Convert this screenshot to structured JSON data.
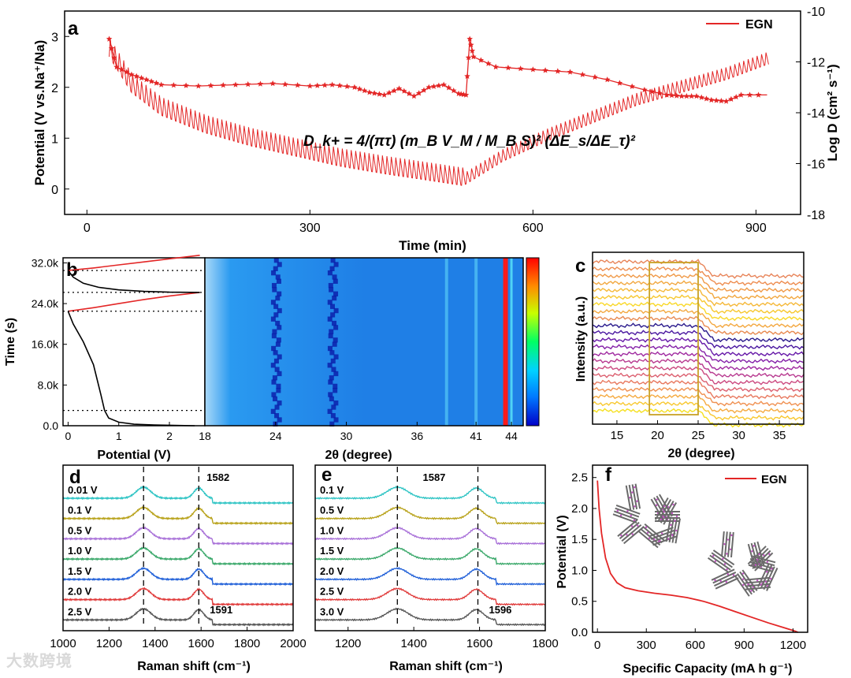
{
  "figure": {
    "watermark": "大数跨境",
    "legend_label": "EGN",
    "panel_labels": [
      "a",
      "b",
      "c",
      "d",
      "e",
      "f"
    ]
  },
  "chart_data": [
    {
      "panel": "a",
      "type": "line",
      "xlabel": "Time (min)",
      "ylabel": "Potential (V vs.Na⁺/Na)",
      "y2label": "Log D (cm² s⁻¹)",
      "xlim": [
        -30,
        960
      ],
      "ylim": [
        -0.5,
        3.5
      ],
      "y2lim": [
        -18,
        -10
      ],
      "xticks": [
        0,
        300,
        600,
        900
      ],
      "yticks": [
        0,
        1,
        2,
        3
      ],
      "y2ticks": [
        -10,
        -12,
        -14,
        -16,
        -18
      ],
      "equation": "D_k+ = 4/(πτ) (m_B V_M / M_B S)² (ΔE_s/ΔE_τ)²",
      "series": [
        {
          "name": "EGN",
          "color": "#e32626",
          "role": "potential",
          "x": [
            30,
            60,
            100,
            160,
            220,
            280,
            340,
            400,
            460,
            505,
            510,
            560,
            620,
            680,
            740,
            800,
            860,
            915
          ],
          "y": [
            2.6,
            1.9,
            1.45,
            1.1,
            0.85,
            0.65,
            0.45,
            0.3,
            0.17,
            0.07,
            0.1,
            0.55,
            0.95,
            1.3,
            1.65,
            1.9,
            2.15,
            2.45
          ]
        },
        {
          "name": "Log D",
          "color": "#e32626",
          "role": "log_d",
          "marker": "star",
          "x": [
            30,
            40,
            60,
            80,
            100,
            150,
            200,
            250,
            300,
            330,
            360,
            380,
            400,
            420,
            440,
            460,
            480,
            500,
            510,
            515,
            520,
            550,
            600,
            650,
            700,
            750,
            780,
            800,
            820,
            840,
            860,
            880,
            915
          ],
          "y": [
            -11.1,
            -12.2,
            -12.5,
            -12.7,
            -12.9,
            -12.95,
            -12.9,
            -12.85,
            -12.95,
            -12.9,
            -13.0,
            -13.2,
            -13.3,
            -13.05,
            -13.35,
            -13.0,
            -12.9,
            -13.25,
            -13.3,
            -11.1,
            -11.8,
            -12.2,
            -12.3,
            -12.4,
            -12.7,
            -13.1,
            -13.3,
            -13.35,
            -13.35,
            -13.5,
            -13.55,
            -13.3,
            -13.3
          ]
        }
      ]
    },
    {
      "panel": "b",
      "type": "line",
      "xlabel": "Potential (V)",
      "ylabel": "Time (s)",
      "xlim": [
        -0.1,
        2.7
      ],
      "ylim": [
        0,
        33000
      ],
      "xticks": [
        0,
        1,
        2
      ],
      "yticks": [
        0,
        8000,
        16000,
        24000,
        32000
      ],
      "ytick_labels": [
        "0.0",
        "8.0k",
        "16.0k",
        "24.0k",
        "32.0k"
      ],
      "series": [
        {
          "name": "discharge",
          "color": "#000000",
          "x": [
            0.0,
            0.1,
            0.3,
            0.5,
            0.65,
            0.72,
            0.8,
            1.0,
            1.3,
            1.7,
            2.1,
            2.5
          ],
          "y": [
            22500,
            20000,
            16500,
            12000,
            6000,
            3000,
            1500,
            700,
            300,
            150,
            60,
            0
          ]
        },
        {
          "name": "charge",
          "color": "#e32626",
          "x": [
            0.0,
            0.5,
            1.0,
            1.5,
            2.0,
            2.6
          ],
          "y": [
            22500,
            23200,
            24000,
            24800,
            25500,
            26200
          ]
        },
        {
          "name": "discharge-2",
          "color": "#000000",
          "x": [
            2.6,
            2.0,
            1.5,
            1.0,
            0.6,
            0.3,
            0.1,
            0.0
          ],
          "y": [
            26200,
            26250,
            26400,
            26700,
            27200,
            28000,
            29200,
            30500
          ]
        },
        {
          "name": "charge-2",
          "color": "#e32626",
          "x": [
            0.0,
            0.5,
            1.0,
            1.5,
            2.0,
            2.6
          ],
          "y": [
            30500,
            31000,
            31600,
            32200,
            32800,
            33500
          ]
        }
      ],
      "dotted_lines_y": [
        3000,
        22500,
        26200,
        30500
      ]
    },
    {
      "panel": "b-map",
      "type": "heatmap",
      "xlabel": "2θ (degree)",
      "xlim": [
        18,
        45
      ],
      "xticks": [
        18,
        24,
        30,
        36,
        41,
        44
      ],
      "peaks_2theta": [
        24.2,
        29.0,
        38.5,
        41.0,
        43.5
      ],
      "colormap": [
        "#0000c8",
        "#0078ff",
        "#00d2ff",
        "#00ff64",
        "#c8ff00",
        "#ff8c00",
        "#ff0000"
      ]
    },
    {
      "panel": "c",
      "type": "line",
      "xlabel": "2θ (degree)",
      "ylabel": "Intensity (a.u.)",
      "xlim": [
        12,
        38
      ],
      "xticks": [
        15,
        20,
        25,
        30,
        35
      ],
      "highlight_range": [
        19,
        25
      ],
      "highlight_color": "#c9a227",
      "num_traces": 22
    },
    {
      "panel": "d",
      "type": "line",
      "xlabel": "Raman shift (cm⁻¹)",
      "xlim": [
        1000,
        2000
      ],
      "xticks": [
        1000,
        1200,
        1400,
        1600,
        1800,
        2000
      ],
      "peak_lines": [
        1350,
        1590
      ],
      "peak_labels": [
        {
          "text": "1582",
          "x": 1590
        },
        {
          "text": "1591",
          "x": 1590
        }
      ],
      "series": [
        {
          "name": "0.01 V",
          "color": "#2ec4c4"
        },
        {
          "name": "0.1 V",
          "color": "#b8a21a"
        },
        {
          "name": "0.5 V",
          "color": "#a870d8"
        },
        {
          "name": "1.0 V",
          "color": "#3aa86a"
        },
        {
          "name": "1.5 V",
          "color": "#1f5fd8"
        },
        {
          "name": "2.0 V",
          "color": "#e03a3a"
        },
        {
          "name": "2.5 V",
          "color": "#555555"
        }
      ]
    },
    {
      "panel": "e",
      "type": "line",
      "xlabel": "Raman shift (cm⁻¹)",
      "xlim": [
        1100,
        1800
      ],
      "xticks": [
        1200,
        1400,
        1600,
        1800
      ],
      "peak_lines": [
        1350,
        1595
      ],
      "peak_labels": [
        {
          "text": "1587",
          "x": 1595
        },
        {
          "text": "1596",
          "x": 1595
        }
      ],
      "series": [
        {
          "name": "0.1 V",
          "color": "#2ec4c4"
        },
        {
          "name": "0.5 V",
          "color": "#b8a21a"
        },
        {
          "name": "1.0 V",
          "color": "#a870d8"
        },
        {
          "name": "1.5 V",
          "color": "#3aa86a"
        },
        {
          "name": "2.0 V",
          "color": "#1f5fd8"
        },
        {
          "name": "2.5 V",
          "color": "#e03a3a"
        },
        {
          "name": "3.0 V",
          "color": "#555555"
        }
      ]
    },
    {
      "panel": "f",
      "type": "line",
      "xlabel": "Specific Capacity (mA h g⁻¹)",
      "ylabel": "Potential (V)",
      "xlim": [
        -30,
        1290
      ],
      "ylim": [
        0,
        2.7
      ],
      "xticks": [
        0,
        300,
        600,
        900,
        1200
      ],
      "yticks": [
        0.0,
        0.5,
        1.0,
        1.5,
        2.0,
        2.5
      ],
      "series": [
        {
          "name": "EGN",
          "color": "#e32626",
          "x": [
            0,
            10,
            25,
            50,
            80,
            120,
            170,
            250,
            350,
            450,
            550,
            650,
            750,
            850,
            950,
            1050,
            1150,
            1210,
            1230
          ],
          "y": [
            2.45,
            2.0,
            1.6,
            1.2,
            0.95,
            0.8,
            0.72,
            0.67,
            0.63,
            0.6,
            0.56,
            0.5,
            0.42,
            0.33,
            0.24,
            0.15,
            0.07,
            0.02,
            0.0
          ]
        }
      ]
    }
  ]
}
